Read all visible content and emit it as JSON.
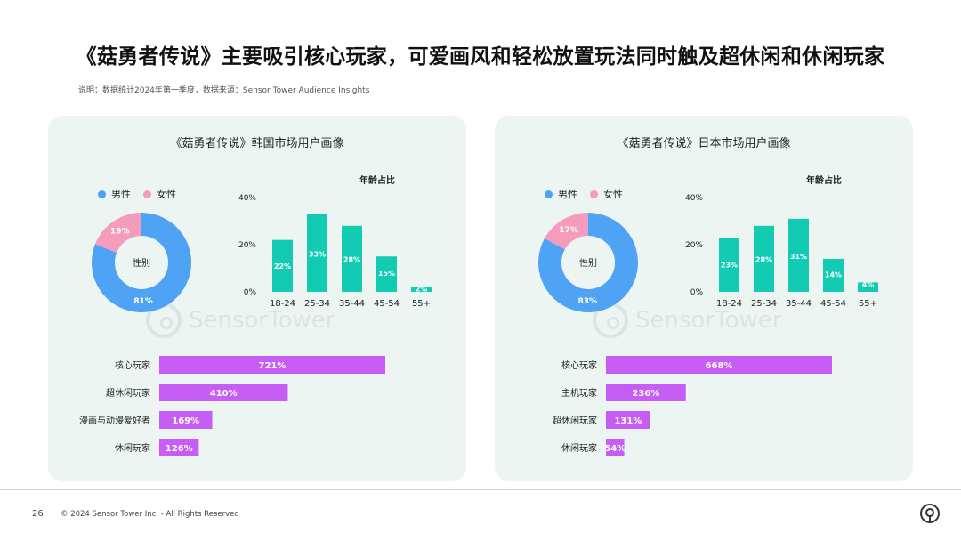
{
  "title": "《菇勇者传说》主要吸引核心玩家，可爱画风和轻松放置玩法同时触及超休闲和休闲玩家",
  "subtitle": "说明：数据统计2024年第一季度，数据来源：Sensor Tower  Audience Insights",
  "colors": {
    "male": "#4fa3f5",
    "female": "#f59cbc",
    "age_bar": "#12cbb2",
    "player_bar": "#c65df5",
    "panel_bg": "#edf5f3"
  },
  "watermark": {
    "text": "SensorTower"
  },
  "panels": [
    {
      "title": "《菇勇者传说》韩国市场用户画像",
      "legend": {
        "male": "男性",
        "female": "女性"
      }
    },
    {
      "title": "《菇勇者传说》日本市场用户画像",
      "legend": {
        "male": "男性",
        "female": "女性"
      }
    }
  ],
  "chart_data": [
    {
      "type": "pie",
      "market": "韩国",
      "center_label": "性别",
      "categories": [
        "男性",
        "女性"
      ],
      "values": [
        81,
        19
      ],
      "labels": [
        "81%",
        "19%"
      ]
    },
    {
      "type": "bar",
      "market": "韩国",
      "title": "年龄占比",
      "categories": [
        "18-24",
        "25-34",
        "35-44",
        "45-54",
        "55+"
      ],
      "values": [
        22,
        33,
        28,
        15,
        2
      ],
      "labels": [
        "22%",
        "33%",
        "28%",
        "15%",
        "2%"
      ],
      "yticks": [
        "0%",
        "20%",
        "40%"
      ],
      "ylim": [
        0,
        40
      ]
    },
    {
      "type": "bar",
      "orientation": "horizontal",
      "market": "韩国",
      "categories": [
        "核心玩家",
        "超休闲玩家",
        "漫画与动漫爱好者",
        "休闲玩家"
      ],
      "values": [
        721,
        410,
        169,
        126
      ],
      "labels": [
        "721%",
        "410%",
        "169%",
        "126%"
      ]
    },
    {
      "type": "pie",
      "market": "日本",
      "center_label": "性别",
      "categories": [
        "男性",
        "女性"
      ],
      "values": [
        83,
        17
      ],
      "labels": [
        "83%",
        "17%"
      ]
    },
    {
      "type": "bar",
      "market": "日本",
      "title": "年龄占比",
      "categories": [
        "18-24",
        "25-34",
        "35-44",
        "45-54",
        "55+"
      ],
      "values": [
        23,
        28,
        31,
        14,
        4
      ],
      "labels": [
        "23%",
        "28%",
        "31%",
        "14%",
        "4%"
      ],
      "yticks": [
        "0%",
        "20%",
        "40%"
      ],
      "ylim": [
        0,
        40
      ]
    },
    {
      "type": "bar",
      "orientation": "horizontal",
      "market": "日本",
      "categories": [
        "核心玩家",
        "主机玩家",
        "超休闲玩家",
        "休闲玩家"
      ],
      "values": [
        668,
        236,
        131,
        54
      ],
      "labels": [
        "668%",
        "236%",
        "131%",
        "54%"
      ]
    }
  ],
  "footer": {
    "page_number": "26",
    "copyright": "© 2024 Sensor Tower Inc. - All Rights Reserved"
  }
}
